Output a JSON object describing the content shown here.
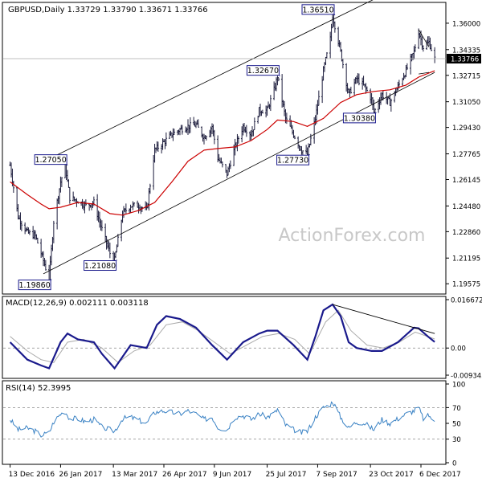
{
  "colors": {
    "background": "#ffffff",
    "frame": "#000000",
    "bars": "#1c1c3c",
    "ma": "#cc0000",
    "channel": "#000000",
    "label_border": "#1a1a8c",
    "macd_line": "#1a1a8c",
    "signal_line": "#aaaaaa",
    "rsi_line": "#3a82c4",
    "level_box_fill": "#000000",
    "level_box_text": "#ffffff",
    "watermark": "#c8c8c8"
  },
  "chart_data": [
    {
      "type": "ohlc",
      "title": "GBPUSD,Daily  1.33729 1.33790 1.33671 1.33766",
      "watermark": "ActionForex.com",
      "ylim": [
        1.1908,
        1.3716
      ],
      "y_ticks": [
        "1.36000",
        "1.34335",
        "1.32715",
        "1.31050",
        "1.29430",
        "1.27765",
        "1.26145",
        "1.24480",
        "1.22860",
        "1.21195",
        "1.19575"
      ],
      "current_price": "1.33766",
      "current_value": 1.33766,
      "grid": false,
      "moving_average": "red line",
      "x_labels": [
        "13 Dec 2016",
        "26 Jan 2017",
        "13 Mar 2017",
        "26 Apr 2017",
        "9 Jun 2017",
        "25 Jul 2017",
        "7 Sep 2017",
        "23 Oct 2017",
        "6 Dec 2017"
      ],
      "x_label_dates": [
        "2016-12-13",
        "2017-01-26",
        "2017-03-13",
        "2017-04-26",
        "2017-06-09",
        "2017-07-25",
        "2017-09-07",
        "2017-10-23",
        "2017-12-06"
      ],
      "close_path": [
        [
          "2016-12-13",
          1.2705
        ],
        [
          "2016-12-20",
          1.238
        ],
        [
          "2016-12-28",
          1.228
        ],
        [
          "2017-01-04",
          1.226
        ],
        [
          "2017-01-09",
          1.215
        ],
        [
          "2017-01-16",
          1.1986
        ],
        [
          "2017-01-20",
          1.235
        ],
        [
          "2017-01-26",
          1.26
        ],
        [
          "2017-01-30",
          1.2705
        ],
        [
          "2017-02-03",
          1.25
        ],
        [
          "2017-02-10",
          1.248
        ],
        [
          "2017-02-17",
          1.245
        ],
        [
          "2017-02-24",
          1.247
        ],
        [
          "2017-03-03",
          1.23
        ],
        [
          "2017-03-10",
          1.215
        ],
        [
          "2017-03-14",
          1.2108
        ],
        [
          "2017-03-21",
          1.24
        ],
        [
          "2017-03-28",
          1.245
        ],
        [
          "2017-04-04",
          1.245
        ],
        [
          "2017-04-11",
          1.242
        ],
        [
          "2017-04-18",
          1.28
        ],
        [
          "2017-04-26",
          1.285
        ],
        [
          "2017-05-03",
          1.29
        ],
        [
          "2017-05-10",
          1.293
        ],
        [
          "2017-05-17",
          1.295
        ],
        [
          "2017-05-24",
          1.296
        ],
        [
          "2017-05-31",
          1.288
        ],
        [
          "2017-06-07",
          1.295
        ],
        [
          "2017-06-12",
          1.275
        ],
        [
          "2017-06-20",
          1.265
        ],
        [
          "2017-06-27",
          1.282
        ],
        [
          "2017-07-04",
          1.295
        ],
        [
          "2017-07-11",
          1.29
        ],
        [
          "2017-07-18",
          1.305
        ],
        [
          "2017-07-25",
          1.305
        ],
        [
          "2017-08-01",
          1.32
        ],
        [
          "2017-08-03",
          1.3267
        ],
        [
          "2017-08-10",
          1.3
        ],
        [
          "2017-08-17",
          1.29
        ],
        [
          "2017-08-24",
          1.28
        ],
        [
          "2017-08-29",
          1.2773
        ],
        [
          "2017-09-05",
          1.3
        ],
        [
          "2017-09-12",
          1.33
        ],
        [
          "2017-09-18",
          1.35
        ],
        [
          "2017-09-20",
          1.3651
        ],
        [
          "2017-09-27",
          1.342
        ],
        [
          "2017-10-04",
          1.315
        ],
        [
          "2017-10-11",
          1.325
        ],
        [
          "2017-10-18",
          1.32
        ],
        [
          "2017-10-24",
          1.312
        ],
        [
          "2017-10-26",
          1.3038
        ],
        [
          "2017-11-02",
          1.315
        ],
        [
          "2017-11-09",
          1.31
        ],
        [
          "2017-11-16",
          1.32
        ],
        [
          "2017-11-23",
          1.33
        ],
        [
          "2017-11-30",
          1.342
        ],
        [
          "2017-12-04",
          1.3548
        ],
        [
          "2017-12-08",
          1.345
        ],
        [
          "2017-12-13",
          1.348
        ],
        [
          "2017-12-18",
          1.3377
        ]
      ],
      "ma_path": [
        [
          "2016-12-13",
          1.26
        ],
        [
          "2016-12-28",
          1.252
        ],
        [
          "2017-01-09",
          1.246
        ],
        [
          "2017-01-16",
          1.243
        ],
        [
          "2017-01-26",
          1.244
        ],
        [
          "2017-02-10",
          1.247
        ],
        [
          "2017-02-24",
          1.246
        ],
        [
          "2017-03-10",
          1.24
        ],
        [
          "2017-03-21",
          1.239
        ],
        [
          "2017-04-04",
          1.242
        ],
        [
          "2017-04-18",
          1.247
        ],
        [
          "2017-05-03",
          1.26
        ],
        [
          "2017-05-17",
          1.273
        ],
        [
          "2017-05-31",
          1.28
        ],
        [
          "2017-06-12",
          1.281
        ],
        [
          "2017-06-27",
          1.282
        ],
        [
          "2017-07-11",
          1.286
        ],
        [
          "2017-07-25",
          1.293
        ],
        [
          "2017-08-03",
          1.299
        ],
        [
          "2017-08-17",
          1.298
        ],
        [
          "2017-08-29",
          1.295
        ],
        [
          "2017-09-12",
          1.3
        ],
        [
          "2017-09-27",
          1.31
        ],
        [
          "2017-10-11",
          1.315
        ],
        [
          "2017-10-26",
          1.317
        ],
        [
          "2017-11-09",
          1.318
        ],
        [
          "2017-11-23",
          1.321
        ],
        [
          "2017-12-04",
          1.326
        ],
        [
          "2017-12-18",
          1.33
        ]
      ],
      "channel": {
        "upper": [
          [
            "2017-01-09",
            1.272
          ],
          [
            "2017-12-07",
            1.39
          ]
        ],
        "lower": [
          [
            "2017-01-11",
            1.202
          ],
          [
            "2017-12-18",
            1.329
          ]
        ]
      },
      "wedge": {
        "upper": [
          [
            "2017-12-04",
            1.356
          ],
          [
            "2017-12-13",
            1.345
          ]
        ],
        "lower": [
          [
            "2017-12-04",
            1.328
          ],
          [
            "2017-12-13",
            1.329
          ]
        ]
      },
      "labels": [
        {
          "text": "1.36510",
          "date": "2017-09-20",
          "value": 1.3651,
          "side": "left",
          "pos": "above"
        },
        {
          "text": "1.32670",
          "date": "2017-08-03",
          "value": 1.3267,
          "side": "left",
          "pos": "above"
        },
        {
          "text": "1.27050",
          "date": "2017-01-30",
          "value": 1.2705,
          "side": "left",
          "pos": "above"
        },
        {
          "text": "1.27730",
          "date": "2017-08-29",
          "value": 1.2773,
          "side": "left",
          "pos": "below"
        },
        {
          "text": "1.30380",
          "date": "2017-10-26",
          "value": 1.3038,
          "side": "left",
          "pos": "below"
        },
        {
          "text": "1.21080",
          "date": "2017-03-14",
          "value": 1.2108,
          "side": "left",
          "pos": "below"
        },
        {
          "text": "1.19860",
          "date": "2017-01-16",
          "value": 1.1986,
          "side": "left",
          "pos": "below"
        }
      ]
    },
    {
      "type": "line",
      "title": "MACD(12,26,9) 0.002111 0.003118",
      "ylim": [
        -0.00934,
        0.01667
      ],
      "y_ticks": [
        "0.016672",
        "0.00",
        "-0.009345"
      ],
      "y_tick_values": [
        0.016672,
        0.0,
        -0.009345
      ],
      "series": [
        {
          "values": [
            [
              "2016-12-13",
              0.002
            ],
            [
              "2016-12-28",
              -0.004
            ],
            [
              "2017-01-09",
              -0.006
            ],
            [
              "2017-01-16",
              -0.007
            ],
            [
              "2017-01-26",
              0.002
            ],
            [
              "2017-02-01",
              0.005
            ],
            [
              "2017-02-10",
              0.003
            ],
            [
              "2017-02-24",
              0.002
            ],
            [
              "2017-03-03",
              -0.002
            ],
            [
              "2017-03-14",
              -0.007
            ],
            [
              "2017-03-28",
              0.001
            ],
            [
              "2017-04-11",
              0.0
            ],
            [
              "2017-04-20",
              0.008
            ],
            [
              "2017-04-28",
              0.011
            ],
            [
              "2017-05-10",
              0.01
            ],
            [
              "2017-05-24",
              0.007
            ],
            [
              "2017-06-07",
              0.001
            ],
            [
              "2017-06-20",
              -0.004
            ],
            [
              "2017-07-04",
              0.002
            ],
            [
              "2017-07-18",
              0.005
            ],
            [
              "2017-07-25",
              0.006
            ],
            [
              "2017-08-03",
              0.006
            ],
            [
              "2017-08-17",
              0.001
            ],
            [
              "2017-08-29",
              -0.004
            ],
            [
              "2017-09-05",
              0.004
            ],
            [
              "2017-09-12",
              0.013
            ],
            [
              "2017-09-20",
              0.015
            ],
            [
              "2017-09-27",
              0.011
            ],
            [
              "2017-10-04",
              0.002
            ],
            [
              "2017-10-11",
              0.0
            ],
            [
              "2017-10-24",
              -0.001
            ],
            [
              "2017-11-02",
              -0.001
            ],
            [
              "2017-11-16",
              0.002
            ],
            [
              "2017-11-30",
              0.007
            ],
            [
              "2017-12-04",
              0.0068
            ],
            [
              "2017-12-12",
              0.004
            ],
            [
              "2017-12-18",
              0.0021
            ]
          ]
        },
        {
          "values": [
            [
              "2016-12-13",
              0.004
            ],
            [
              "2016-12-28",
              -0.001
            ],
            [
              "2017-01-09",
              -0.004
            ],
            [
              "2017-01-20",
              -0.005
            ],
            [
              "2017-02-01",
              0.002
            ],
            [
              "2017-02-15",
              0.003
            ],
            [
              "2017-03-03",
              0.0
            ],
            [
              "2017-03-17",
              -0.005
            ],
            [
              "2017-03-31",
              -0.001
            ],
            [
              "2017-04-14",
              0.001
            ],
            [
              "2017-04-28",
              0.008
            ],
            [
              "2017-05-12",
              0.009
            ],
            [
              "2017-05-26",
              0.006
            ],
            [
              "2017-06-09",
              0.002
            ],
            [
              "2017-06-23",
              -0.002
            ],
            [
              "2017-07-07",
              0.001
            ],
            [
              "2017-07-21",
              0.004
            ],
            [
              "2017-08-04",
              0.005
            ],
            [
              "2017-08-18",
              0.003
            ],
            [
              "2017-08-31",
              -0.002
            ],
            [
              "2017-09-14",
              0.009
            ],
            [
              "2017-09-25",
              0.013
            ],
            [
              "2017-10-06",
              0.006
            ],
            [
              "2017-10-20",
              0.001
            ],
            [
              "2017-11-03",
              0.0
            ],
            [
              "2017-11-17",
              0.002
            ],
            [
              "2017-12-01",
              0.0055
            ],
            [
              "2017-12-18",
              0.0031
            ]
          ]
        }
      ],
      "trendline": [
        [
          "2017-09-20",
          0.015
        ],
        [
          "2017-12-18",
          0.005
        ]
      ]
    },
    {
      "type": "line",
      "title": "RSI(14) 52.3995",
      "ylim": [
        0,
        100
      ],
      "y_ticks": [
        "100",
        "70",
        "50",
        "30",
        "0"
      ],
      "y_tick_values": [
        100,
        70,
        50,
        30,
        0
      ],
      "reference_lines": [
        70,
        30
      ],
      "series": [
        {
          "values": [
            [
              "2016-12-13",
              55
            ],
            [
              "2016-12-20",
              42
            ],
            [
              "2016-12-28",
              44
            ],
            [
              "2017-01-04",
              40
            ],
            [
              "2017-01-09",
              35
            ],
            [
              "2017-01-16",
              38
            ],
            [
              "2017-01-20",
              52
            ],
            [
              "2017-01-26",
              62
            ],
            [
              "2017-01-30",
              65
            ],
            [
              "2017-02-03",
              56
            ],
            [
              "2017-02-10",
              56
            ],
            [
              "2017-02-17",
              52
            ],
            [
              "2017-02-24",
              55
            ],
            [
              "2017-03-03",
              45
            ],
            [
              "2017-03-10",
              42
            ],
            [
              "2017-03-14",
              40
            ],
            [
              "2017-03-21",
              56
            ],
            [
              "2017-03-28",
              58
            ],
            [
              "2017-04-04",
              54
            ],
            [
              "2017-04-11",
              50
            ],
            [
              "2017-04-18",
              64
            ],
            [
              "2017-04-26",
              66
            ],
            [
              "2017-05-03",
              64
            ],
            [
              "2017-05-10",
              62
            ],
            [
              "2017-05-17",
              66
            ],
            [
              "2017-05-24",
              62
            ],
            [
              "2017-05-31",
              55
            ],
            [
              "2017-06-07",
              58
            ],
            [
              "2017-06-12",
              45
            ],
            [
              "2017-06-20",
              42
            ],
            [
              "2017-06-27",
              58
            ],
            [
              "2017-07-04",
              60
            ],
            [
              "2017-07-11",
              55
            ],
            [
              "2017-07-18",
              62
            ],
            [
              "2017-07-25",
              58
            ],
            [
              "2017-08-01",
              64
            ],
            [
              "2017-08-03",
              68
            ],
            [
              "2017-08-10",
              48
            ],
            [
              "2017-08-17",
              42
            ],
            [
              "2017-08-24",
              38
            ],
            [
              "2017-08-29",
              40
            ],
            [
              "2017-09-05",
              58
            ],
            [
              "2017-09-12",
              70
            ],
            [
              "2017-09-18",
              74
            ],
            [
              "2017-09-20",
              78
            ],
            [
              "2017-09-27",
              58
            ],
            [
              "2017-10-04",
              44
            ],
            [
              "2017-10-11",
              52
            ],
            [
              "2017-10-18",
              50
            ],
            [
              "2017-10-24",
              44
            ],
            [
              "2017-10-26",
              42
            ],
            [
              "2017-11-02",
              55
            ],
            [
              "2017-11-09",
              50
            ],
            [
              "2017-11-16",
              56
            ],
            [
              "2017-11-23",
              62
            ],
            [
              "2017-11-30",
              66
            ],
            [
              "2017-12-04",
              70
            ],
            [
              "2017-12-08",
              56
            ],
            [
              "2017-12-13",
              60
            ],
            [
              "2017-12-18",
              52.4
            ]
          ]
        }
      ]
    }
  ]
}
